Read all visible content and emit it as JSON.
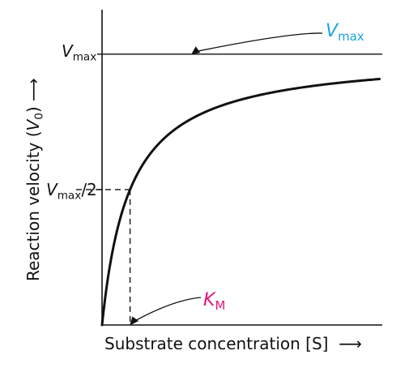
{
  "chart_data": {
    "type": "line",
    "title": "",
    "xlabel": "Substrate concentration [S] ⟶",
    "ylabel": "Reaction velocity (V0) ⟶",
    "x_range": [
      0,
      10
    ],
    "y_range": [
      0,
      1.2
    ],
    "grid": false,
    "series": [
      {
        "kind": "michaelis-menten",
        "Vmax": 1.0,
        "KM": 1.0,
        "x": [
          0,
          0.25,
          0.5,
          1,
          2,
          3,
          4,
          5,
          6,
          7,
          8,
          9,
          9.9
        ],
        "y": [
          0,
          0.2,
          0.33,
          0.5,
          0.67,
          0.75,
          0.8,
          0.83,
          0.86,
          0.875,
          0.89,
          0.9,
          0.91
        ]
      }
    ],
    "reference_lines": [
      {
        "type": "horizontal",
        "y": 1.0,
        "style": "solid"
      },
      {
        "type": "horizontal",
        "y": 0.5,
        "x_to": 1.0,
        "style": "dashed"
      },
      {
        "type": "vertical",
        "x": 1.0,
        "y_to": 0.5,
        "style": "dashed"
      }
    ],
    "tick_labels": {
      "y": [
        {
          "value": 1.0,
          "main": "V",
          "sub": "max",
          "suffix": ""
        },
        {
          "value": 0.5,
          "main": "V",
          "sub": "max",
          "suffix": "/2"
        }
      ]
    },
    "annotations": [
      {
        "main": "V",
        "sub": "max",
        "color": "#1aa3e0",
        "points_to": {
          "x": 3.2,
          "y": 1.0
        }
      },
      {
        "main": "K",
        "sub": "M",
        "color": "#e0177a",
        "points_to": {
          "x": 1.0,
          "y": 0.0
        }
      }
    ],
    "axes": {
      "x_title_main": "Substrate concentration [S]",
      "x_arrow": "⟶",
      "y_title_main": "Reaction velocity (",
      "y_title_var": "V",
      "y_title_sub": "0",
      "y_title_end": ")",
      "y_arrow": "⟶"
    }
  }
}
